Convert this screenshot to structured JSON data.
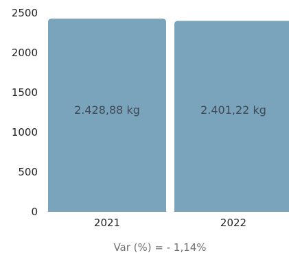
{
  "chart_data": {
    "type": "bar",
    "categories": [
      "2021",
      "2022"
    ],
    "values": [
      2428.88,
      2401.22
    ],
    "data_labels": [
      "2.428,88 kg",
      "2.401,22 kg"
    ],
    "unit": "kg",
    "yticks": [
      "0",
      "500",
      "1000",
      "1500",
      "2000",
      "2500"
    ],
    "ylim": [
      0,
      2500
    ],
    "grid": false,
    "legend": "none",
    "bar_color": "#7aa3bc",
    "footnote": "Var (%) = - 1,14%"
  }
}
